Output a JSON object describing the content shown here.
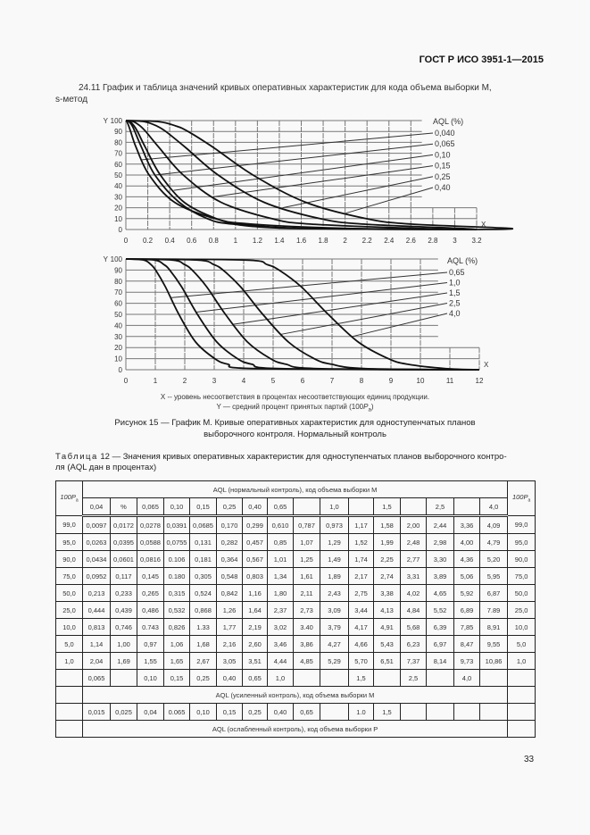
{
  "header": {
    "doc_id": "ГОСТ Р ИСО 3951-1—2015"
  },
  "section": {
    "title_line1": "24.11 График и таблица значений кривых оперативных характеристик для кода объема выборки M,",
    "title_line2": "s-метод"
  },
  "chart_data": [
    {
      "type": "line",
      "legend_title": "AQL (%)",
      "legend_placement": "right",
      "xlabel": "X",
      "ylabel": "Y",
      "xlim": [
        0,
        3.2
      ],
      "ylim": [
        0,
        100
      ],
      "grid": true,
      "x_ticks": [
        "0",
        "0.2",
        "0.4",
        "0.6",
        "0.8",
        "1",
        "1.2",
        "1.4",
        "1.6",
        "1.8",
        "2",
        "2.2",
        "2.4",
        "2.6",
        "2.8",
        "3",
        "3.2"
      ],
      "y_ticks": [
        "0",
        "10",
        "20",
        "30",
        "40",
        "50",
        "60",
        "70",
        "80",
        "90",
        "100"
      ],
      "y_values": [
        100,
        99,
        95,
        90,
        75,
        50,
        25,
        10,
        5,
        1
      ],
      "series": [
        {
          "name": "0,040",
          "x": [
            0,
            0.0097,
            0.0263,
            0.0434,
            0.0952,
            0.213,
            0.444,
            0.813,
            1.14,
            2.04
          ]
        },
        {
          "name": "0,065",
          "x": [
            0,
            0.0278,
            0.0588,
            0.0816,
            0.145,
            0.265,
            0.486,
            0.743,
            0.97,
            1.55
          ]
        },
        {
          "name": "0,10",
          "x": [
            0,
            0.0391,
            0.0755,
            0.106,
            0.18,
            0.315,
            0.532,
            0.826,
            1.06,
            1.65
          ]
        },
        {
          "name": "0,15",
          "x": [
            0,
            0.0685,
            0.131,
            0.181,
            0.305,
            0.524,
            0.868,
            1.33,
            1.68,
            2.67
          ]
        },
        {
          "name": "0,25",
          "x": [
            0,
            0.17,
            0.282,
            0.364,
            0.548,
            0.842,
            1.26,
            1.77,
            2.16,
            3.05
          ]
        },
        {
          "name": "0,40",
          "x": [
            0,
            0.299,
            0.457,
            0.567,
            0.803,
            1.16,
            1.64,
            2.19,
            2.6,
            3.51
          ]
        }
      ]
    },
    {
      "type": "line",
      "legend_title": "AQL (%)",
      "legend_placement": "right",
      "xlabel": "X",
      "ylabel": "Y",
      "xlim": [
        0,
        12
      ],
      "ylim": [
        0,
        100
      ],
      "grid": true,
      "x_ticks": [
        "0",
        "1",
        "2",
        "3",
        "4",
        "5",
        "6",
        "7",
        "8",
        "9",
        "10",
        "11",
        "12"
      ],
      "y_ticks": [
        "0",
        "10",
        "20",
        "30",
        "40",
        "50",
        "60",
        "70",
        "80",
        "90",
        "100"
      ],
      "y_values": [
        100,
        99,
        95,
        90,
        75,
        50,
        25,
        10,
        5,
        1
      ],
      "series": [
        {
          "name": "0,65",
          "x": [
            0,
            0.61,
            0.85,
            1.01,
            1.34,
            1.8,
            2.37,
            3.02,
            3.46,
            4.44
          ]
        },
        {
          "name": "1,0",
          "x": [
            0,
            0.973,
            1.29,
            1.49,
            1.89,
            2.43,
            3.09,
            3.79,
            4.27,
            5.29
          ]
        },
        {
          "name": "1,5",
          "x": [
            0,
            1.58,
            1.99,
            2.25,
            2.74,
            3.38,
            4.13,
            4.91,
            5.43,
            6.51
          ]
        },
        {
          "name": "2,5",
          "x": [
            0,
            2.44,
            2.98,
            3.3,
            3.89,
            4.65,
            5.52,
            6.39,
            6.97,
            8.14
          ]
        },
        {
          "name": "4,0",
          "x": [
            0,
            4.09,
            4.79,
            5.2,
            5.95,
            6.87,
            7.89,
            8.91,
            9.55,
            10.86
          ]
        }
      ]
    }
  ],
  "figure": {
    "legend_x": "X -- уровень несоответствия в процентах несоответствующих единиц продукции.",
    "legend_y_prefix": "Y — средний процент принятых партий (100",
    "legend_y_sub": "a",
    "legend_y_suffix": ")",
    "caption_line1": "Рисунок 15 — График М. Кривые оперативных характеристик для одноступенчатых планов",
    "caption_line2": "выборочного контроля. Нормальный контроль"
  },
  "table_caption": {
    "label": "Таблица",
    "line1_rest": " 12 — Значения кривых оперативных характеристик для одноступенчатых планов выборочного контро-",
    "line2": "ля (AQL дан в процентах)"
  },
  "table": {
    "pa_header": "100P",
    "pa_sub": "a",
    "normal_header": "AQL (нормальный контроль), код объема выборки M",
    "normal_aql": [
      "0,04",
      "%",
      "0,065",
      "0,10",
      "0,15",
      "0,25",
      "0,40",
      "0,65",
      "",
      "1,0",
      "",
      "1,5",
      "",
      "2,5",
      "",
      "4,0"
    ],
    "rows": [
      {
        "pa": "99,0",
        "values": [
          "0,0097",
          "0,0172",
          "0,0278",
          "0,0391",
          "0,0685",
          "0,170",
          "0,299",
          "0,610",
          "0,787",
          "0,973",
          "1,17",
          "1,58",
          "2,00",
          "2,44",
          "3,36",
          "4,09"
        ]
      },
      {
        "pa": "95,0",
        "values": [
          "0,0263",
          "0,0395",
          "0,0588",
          "0,0755",
          "0,131",
          "0,282",
          "0,457",
          "0,85",
          "1,07",
          "1,29",
          "1,52",
          "1,99",
          "2,48",
          "2,98",
          "4,00",
          "4,79"
        ]
      },
      {
        "pa": "90,0",
        "values": [
          "0,0434",
          "0,0601",
          "0,0816",
          "0.106",
          "0,181",
          "0,364",
          "0,567",
          "1,01",
          "1,25",
          "1,49",
          "1,74",
          "2,25",
          "2,77",
          "3,30",
          "4,36",
          "5,20"
        ]
      },
      {
        "pa": "75,0",
        "values": [
          "0,0952",
          "0,117",
          "0,145",
          "0.180",
          "0,305",
          "0,548",
          "0,803",
          "1,34",
          "1,61",
          "1,89",
          "2,17",
          "2,74",
          "3,31",
          "3,89",
          "5,06",
          "5,95"
        ]
      },
      {
        "pa": "50,0",
        "values": [
          "0,213",
          "0,233",
          "0,265",
          "0,315",
          "0,524",
          "0,842",
          "1,16",
          "1,80",
          "2,11",
          "2,43",
          "2,75",
          "3,38",
          "4,02",
          "4,65",
          "5,92",
          "6,87"
        ]
      },
      {
        "pa": "25,0",
        "values": [
          "0,444",
          "0,439",
          "0,486",
          "0,532",
          "0,868",
          "1,26",
          "1,64",
          "2,37",
          "2,73",
          "3,09",
          "3,44",
          "4,13",
          "4,84",
          "5,52",
          "6,89",
          "7.89"
        ]
      },
      {
        "pa": "10,0",
        "values": [
          "0,813",
          "0,746",
          "0.743",
          "0,826",
          "1.33",
          "1,77",
          "2,19",
          "3,02",
          "3.40",
          "3,79",
          "4,17",
          "4,91",
          "5,68",
          "6,39",
          "7,85",
          "8,91"
        ]
      },
      {
        "pa": "5,0",
        "values": [
          "1,14",
          "1,00",
          "0,97",
          "1,06",
          "1,68",
          "2,16",
          "2,60",
          "3,46",
          "3,86",
          "4,27",
          "4,66",
          "5,43",
          "6,23",
          "6,97",
          "8,47",
          "9,55"
        ]
      },
      {
        "pa": "1,0",
        "values": [
          "2,04",
          "1,69",
          "1,55",
          "1,65",
          "2,67",
          "3,05",
          "3,51",
          "4,44",
          "4,85",
          "5,29",
          "5,70",
          "6,51",
          "7,37",
          "8,14",
          "9,73",
          "10,86"
        ]
      }
    ],
    "tightened_aql": [
      "0,065",
      "",
      "0,10",
      "0,15",
      "0,25",
      "0,40",
      "0,65",
      "1,0",
      "",
      "",
      "1,5",
      "",
      "2,5",
      "",
      "4,0",
      ""
    ],
    "tightened_header": "AQL (усиленный контроль), код объема выборки M",
    "reduced_aql": [
      "0,015",
      "0,025",
      "0,04",
      "0.065",
      "0,10",
      "0,15",
      "0,25",
      "0,40",
      "0,65",
      "",
      "1.0",
      "1,5",
      "",
      "",
      "",
      ""
    ],
    "reduced_header": "AQL (ослабленный контроль), код объема выборки P"
  },
  "page_number": "33"
}
